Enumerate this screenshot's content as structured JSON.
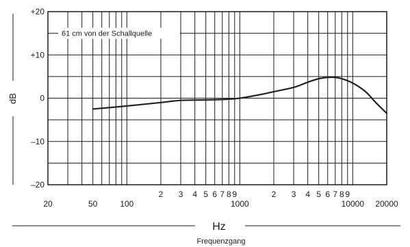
{
  "chart_data": {
    "type": "line",
    "title": "",
    "annotation": "61 cm von der Schallquelle",
    "xlabel": "Hz",
    "xlabel_sub": "Frequenzgang",
    "ylabel": "dB",
    "x_scale": "log",
    "xlim": [
      20,
      20000
    ],
    "ylim": [
      -20,
      20
    ],
    "grid": true,
    "y_ticks": [
      {
        "value": 20,
        "label": "+20"
      },
      {
        "value": 10,
        "label": "+10"
      },
      {
        "value": 0,
        "label": "0"
      },
      {
        "value": -10,
        "label": "–10"
      },
      {
        "value": -20,
        "label": "–20"
      }
    ],
    "x_major_labels": [
      {
        "value": 20,
        "label": "20"
      },
      {
        "value": 50,
        "label": "50"
      },
      {
        "value": 100,
        "label": "100"
      },
      {
        "value": 1000,
        "label": "1000"
      },
      {
        "value": 10000,
        "label": "10000"
      },
      {
        "value": 20000,
        "label": "20000"
      }
    ],
    "x_minor_labels": [
      {
        "value": 200,
        "label": "2"
      },
      {
        "value": 300,
        "label": "3"
      },
      {
        "value": 400,
        "label": "4"
      },
      {
        "value": 500,
        "label": "5"
      },
      {
        "value": 600,
        "label": "6"
      },
      {
        "value": 700,
        "label": "7"
      },
      {
        "value": 800,
        "label": "8"
      },
      {
        "value": 900,
        "label": "9"
      },
      {
        "value": 2000,
        "label": "2"
      },
      {
        "value": 3000,
        "label": "3"
      },
      {
        "value": 4000,
        "label": "4"
      },
      {
        "value": 5000,
        "label": "5"
      },
      {
        "value": 6000,
        "label": "6"
      },
      {
        "value": 7000,
        "label": "7"
      },
      {
        "value": 8000,
        "label": "8"
      },
      {
        "value": 9000,
        "label": "9"
      }
    ],
    "series": [
      {
        "color": "#222222",
        "x": [
          50,
          100,
          200,
          300,
          500,
          700,
          1000,
          1500,
          2000,
          3000,
          4000,
          5000,
          6000,
          7000,
          8000,
          10000,
          13000,
          16000,
          20000
        ],
        "y": [
          -2.5,
          -1.8,
          -1.0,
          -0.5,
          -0.4,
          -0.3,
          0.0,
          0.8,
          1.5,
          2.5,
          3.7,
          4.5,
          4.8,
          4.8,
          4.5,
          3.5,
          1.5,
          -1.0,
          -3.5
        ]
      }
    ]
  }
}
